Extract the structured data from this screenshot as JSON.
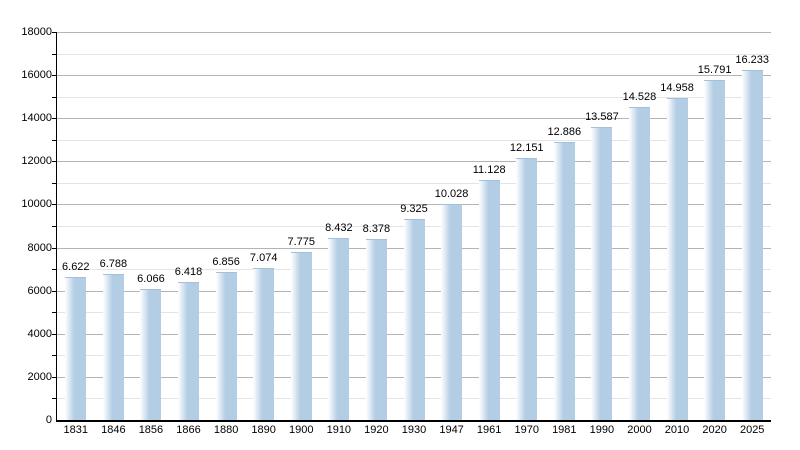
{
  "chart_data": {
    "type": "bar",
    "title": "",
    "xlabel": "",
    "ylabel": "",
    "categories": [
      "1831",
      "1846",
      "1856",
      "1866",
      "1880",
      "1890",
      "1900",
      "1910",
      "1920",
      "1930",
      "1947",
      "1961",
      "1970",
      "1981",
      "1990",
      "2000",
      "2010",
      "2020",
      "2025"
    ],
    "values": [
      6622,
      6788,
      6066,
      6418,
      6856,
      7074,
      7775,
      8432,
      8378,
      9325,
      10028,
      11128,
      12151,
      12886,
      13587,
      14528,
      14958,
      15791,
      16233
    ],
    "value_labels": [
      "6.622",
      "6.788",
      "6.066",
      "6.418",
      "6.856",
      "7.074",
      "7.775",
      "8.432",
      "8.378",
      "9.325",
      "10.028",
      "11.128",
      "12.151",
      "12.886",
      "13.587",
      "14.528",
      "14.958",
      "15.791",
      "16.233"
    ],
    "ylim": [
      0,
      18000
    ],
    "ytick_step_major": 2000,
    "ytick_step_minor": 1000,
    "ytick_labels": [
      "0",
      "2000",
      "4000",
      "6000",
      "8000",
      "10000",
      "12000",
      "14000",
      "16000",
      "18000"
    ],
    "grid": "horizontal",
    "legend": null,
    "colors": {
      "bar_fill": "#b3cde5",
      "bar_fade": "#ffffff",
      "bar_edge_top": "#a4c1dc",
      "grid_major": "#b3b3b3",
      "grid_minor": "#e4e4e4",
      "axis": "#000000",
      "text": "#000000",
      "background": "#ffffff"
    }
  }
}
